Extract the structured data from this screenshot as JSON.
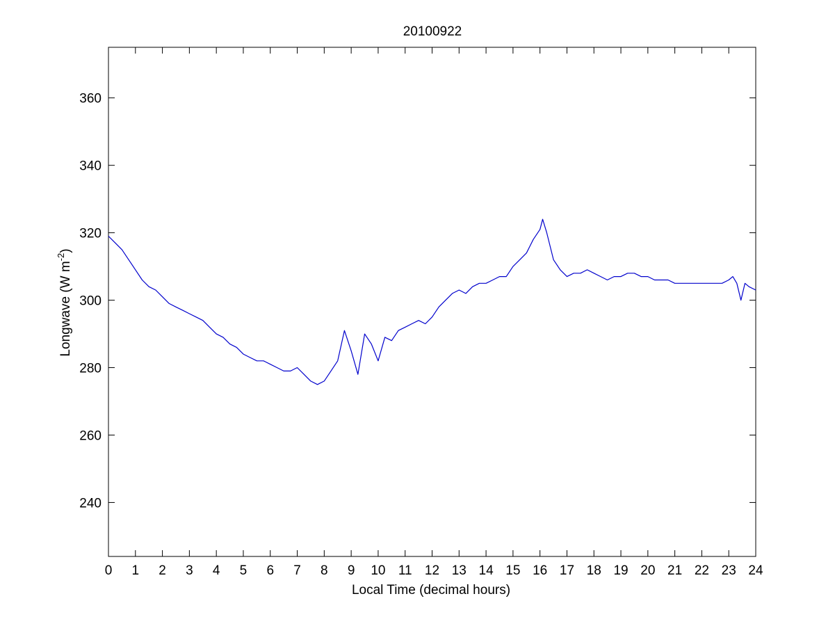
{
  "chart_data": {
    "type": "line",
    "title": "20100922",
    "xlabel": "Local Time (decimal hours)",
    "ylabel_main": "Longwave (W m",
    "ylabel_sup": "-2",
    "ylabel_close": ")",
    "xlim": [
      0,
      24
    ],
    "ylim": [
      224,
      375
    ],
    "xticks": [
      0,
      1,
      2,
      3,
      4,
      5,
      6,
      7,
      8,
      9,
      10,
      11,
      12,
      13,
      14,
      15,
      16,
      17,
      18,
      19,
      20,
      21,
      22,
      23,
      24
    ],
    "yticks": [
      240,
      260,
      280,
      300,
      320,
      340,
      360
    ],
    "grid": false,
    "line_color": "#0000cc",
    "series": [
      {
        "x": [
          0,
          0.25,
          0.5,
          0.75,
          1,
          1.25,
          1.5,
          1.75,
          2,
          2.25,
          2.5,
          2.75,
          3,
          3.25,
          3.5,
          3.75,
          4,
          4.25,
          4.5,
          4.75,
          5,
          5.25,
          5.5,
          5.75,
          6,
          6.25,
          6.5,
          6.75,
          7,
          7.25,
          7.5,
          7.75,
          8,
          8.25,
          8.5,
          8.75,
          9,
          9.25,
          9.5,
          9.75,
          10,
          10.25,
          10.5,
          10.75,
          11,
          11.25,
          11.5,
          11.75,
          12,
          12.25,
          12.5,
          12.75,
          13,
          13.25,
          13.5,
          13.75,
          14,
          14.25,
          14.5,
          14.75,
          15,
          15.25,
          15.5,
          15.75,
          16,
          16.1,
          16.25,
          16.5,
          16.75,
          17,
          17.25,
          17.5,
          17.75,
          18,
          18.25,
          18.5,
          18.75,
          19,
          19.25,
          19.5,
          19.75,
          20,
          20.25,
          20.5,
          20.75,
          21,
          21.25,
          21.5,
          21.75,
          22,
          22.25,
          22.5,
          22.75,
          23,
          23.15,
          23.3,
          23.45,
          23.6,
          23.75,
          24
        ],
        "y": [
          319,
          317,
          315,
          312,
          309,
          306,
          304,
          303,
          301,
          299,
          298,
          297,
          296,
          295,
          294,
          292,
          290,
          289,
          287,
          286,
          284,
          283,
          282,
          282,
          281,
          280,
          279,
          279,
          280,
          278,
          276,
          275,
          276,
          279,
          282,
          291,
          285,
          278,
          290,
          287,
          282,
          289,
          288,
          291,
          292,
          293,
          294,
          293,
          295,
          298,
          300,
          302,
          303,
          302,
          304,
          305,
          305,
          306,
          307,
          307,
          310,
          312,
          314,
          318,
          321,
          324,
          320,
          312,
          309,
          307,
          308,
          308,
          309,
          308,
          307,
          306,
          307,
          307,
          308,
          308,
          307,
          307,
          306,
          306,
          306,
          305,
          305,
          305,
          305,
          305,
          305,
          305,
          305,
          306,
          307,
          305,
          300,
          305,
          304,
          303
        ]
      }
    ]
  }
}
